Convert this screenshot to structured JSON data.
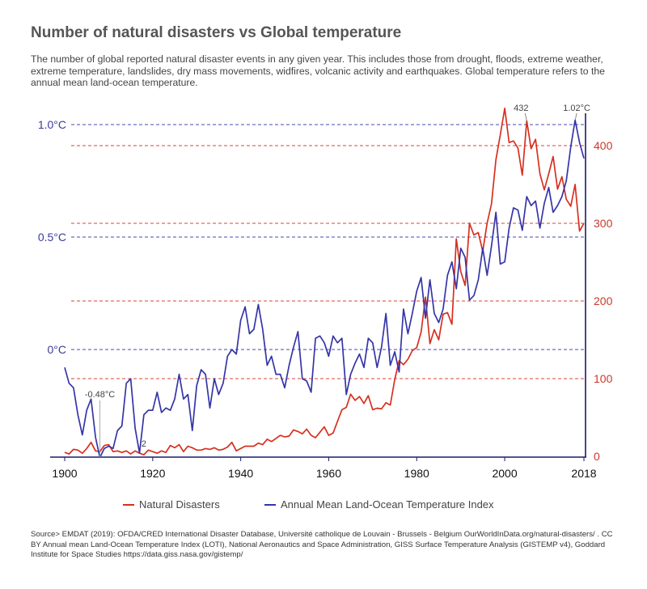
{
  "title": "Number of natural disasters vs Global temperature",
  "subtitle": "The number of global reported natural disaster events in any given year. This includes those from drought, floods, extreme weather, extreme temperature, landslides, dry mass movements, widfires, volcanic activity and earthquakes. Global temperature refers to the annual mean land-ocean temperature.",
  "source": "Source> EMDAT (2019): OFDA/CRED International Disaster Database, Université catholique de Louvain - Brussels - Belgium OurWorldInData.org/natural-disasters/ . CC BY Annual mean Land-Ocean Temperature Index (LOTI), National Aeronautics and Space Administration, GISS Surface Temperature Analysis (GISTEMP v4), Goddard Institute for Space Studies https://data.giss.nasa.gov/gistemp/",
  "colors": {
    "disasters": "#d7301f",
    "temperature": "#3535a8",
    "axis": "#1a1a6e"
  },
  "chart_data": {
    "type": "line",
    "x_ticks": [
      1900,
      1920,
      1940,
      1960,
      1980,
      2000,
      2018
    ],
    "left_axis": {
      "ticks": [
        {
          "v": 0.0,
          "label": "0°C"
        },
        {
          "v": 0.5,
          "label": "0.5°C"
        },
        {
          "v": 1.0,
          "label": "1.0°C"
        }
      ],
      "range": [
        -0.48,
        1.02
      ]
    },
    "right_axis": {
      "ticks": [
        {
          "v": 0,
          "label": "0"
        },
        {
          "v": 100,
          "label": "100"
        },
        {
          "v": 200,
          "label": "200"
        },
        {
          "v": 300,
          "label": "300"
        },
        {
          "v": 400,
          "label": "400"
        }
      ],
      "range": [
        0,
        432
      ]
    },
    "xlim": [
      1900,
      2018
    ],
    "annotations": [
      {
        "label": "-0.48°C",
        "series": "temperature",
        "year": 1908,
        "value": -0.48
      },
      {
        "label": "2",
        "series": "disasters",
        "year": 1918,
        "value": 2
      },
      {
        "label": "432",
        "series": "disasters",
        "year": 2005,
        "value": 432
      },
      {
        "label": "1.02°C",
        "series": "temperature",
        "year": 2016,
        "value": 1.02
      }
    ],
    "series": [
      {
        "name": "Natural Disasters",
        "axis": "right",
        "x": [
          1900,
          1901,
          1902,
          1903,
          1904,
          1905,
          1906,
          1907,
          1908,
          1909,
          1910,
          1911,
          1912,
          1913,
          1914,
          1915,
          1916,
          1917,
          1918,
          1919,
          1920,
          1921,
          1922,
          1923,
          1924,
          1925,
          1926,
          1927,
          1928,
          1929,
          1930,
          1931,
          1932,
          1933,
          1934,
          1935,
          1936,
          1937,
          1938,
          1939,
          1940,
          1941,
          1942,
          1943,
          1944,
          1945,
          1946,
          1947,
          1948,
          1949,
          1950,
          1951,
          1952,
          1953,
          1954,
          1955,
          1956,
          1957,
          1958,
          1959,
          1960,
          1961,
          1962,
          1963,
          1964,
          1965,
          1966,
          1967,
          1968,
          1969,
          1970,
          1971,
          1972,
          1973,
          1974,
          1975,
          1976,
          1977,
          1978,
          1979,
          1980,
          1981,
          1982,
          1983,
          1984,
          1985,
          1986,
          1987,
          1988,
          1989,
          1990,
          1991,
          1992,
          1993,
          1994,
          1995,
          1996,
          1997,
          1998,
          1999,
          2000,
          2001,
          2002,
          2003,
          2004,
          2005,
          2006,
          2007,
          2008,
          2009,
          2010,
          2011,
          2012,
          2013,
          2014,
          2015,
          2016,
          2017,
          2018
        ],
        "values": [
          5,
          3,
          9,
          8,
          4,
          10,
          18,
          7,
          6,
          14,
          15,
          6,
          7,
          5,
          7,
          3,
          7,
          4,
          2,
          8,
          6,
          4,
          7,
          5,
          14,
          11,
          15,
          6,
          13,
          11,
          8,
          8,
          10,
          9,
          11,
          8,
          9,
          12,
          18,
          7,
          10,
          13,
          13,
          13,
          17,
          15,
          22,
          19,
          23,
          27,
          25,
          26,
          34,
          32,
          29,
          35,
          27,
          24,
          31,
          38,
          27,
          30,
          45,
          60,
          63,
          80,
          72,
          77,
          68,
          78,
          60,
          62,
          61,
          69,
          66,
          99,
          123,
          118,
          125,
          136,
          140,
          160,
          205,
          145,
          163,
          150,
          183,
          185,
          170,
          280,
          238,
          220,
          300,
          285,
          288,
          264,
          300,
          325,
          382,
          414,
          448,
          404,
          406,
          397,
          362,
          432,
          396,
          408,
          364,
          343,
          364,
          386,
          344,
          360,
          331,
          322,
          350,
          290,
          300
        ]
      },
      {
        "name": "Annual Mean Land-Ocean Temperature Index",
        "axis": "left",
        "x": [
          1900,
          1901,
          1902,
          1903,
          1904,
          1905,
          1906,
          1907,
          1908,
          1909,
          1910,
          1911,
          1912,
          1913,
          1914,
          1915,
          1916,
          1917,
          1918,
          1919,
          1920,
          1921,
          1922,
          1923,
          1924,
          1925,
          1926,
          1927,
          1928,
          1929,
          1930,
          1931,
          1932,
          1933,
          1934,
          1935,
          1936,
          1937,
          1938,
          1939,
          1940,
          1941,
          1942,
          1943,
          1944,
          1945,
          1946,
          1947,
          1948,
          1949,
          1950,
          1951,
          1952,
          1953,
          1954,
          1955,
          1956,
          1957,
          1958,
          1959,
          1960,
          1961,
          1962,
          1963,
          1964,
          1965,
          1966,
          1967,
          1968,
          1969,
          1970,
          1971,
          1972,
          1973,
          1974,
          1975,
          1976,
          1977,
          1978,
          1979,
          1980,
          1981,
          1982,
          1983,
          1984,
          1985,
          1986,
          1987,
          1988,
          1989,
          1990,
          1991,
          1992,
          1993,
          1994,
          1995,
          1996,
          1997,
          1998,
          1999,
          2000,
          2001,
          2002,
          2003,
          2004,
          2005,
          2006,
          2007,
          2008,
          2009,
          2010,
          2011,
          2012,
          2013,
          2014,
          2015,
          2016,
          2017,
          2018
        ],
        "values": [
          -0.08,
          -0.15,
          -0.17,
          -0.29,
          -0.38,
          -0.27,
          -0.22,
          -0.39,
          -0.48,
          -0.44,
          -0.43,
          -0.44,
          -0.36,
          -0.34,
          -0.15,
          -0.13,
          -0.35,
          -0.46,
          -0.29,
          -0.27,
          -0.27,
          -0.19,
          -0.28,
          -0.26,
          -0.27,
          -0.22,
          -0.11,
          -0.22,
          -0.2,
          -0.36,
          -0.16,
          -0.09,
          -0.11,
          -0.26,
          -0.13,
          -0.2,
          -0.15,
          -0.03,
          0.0,
          -0.02,
          0.13,
          0.19,
          0.07,
          0.09,
          0.2,
          0.09,
          -0.07,
          -0.03,
          -0.11,
          -0.11,
          -0.17,
          -0.07,
          0.01,
          0.08,
          -0.13,
          -0.14,
          -0.19,
          0.05,
          0.06,
          0.03,
          -0.03,
          0.06,
          0.03,
          0.05,
          -0.2,
          -0.11,
          -0.06,
          -0.02,
          -0.08,
          0.05,
          0.03,
          -0.08,
          0.01,
          0.16,
          -0.07,
          -0.01,
          -0.1,
          0.18,
          0.07,
          0.16,
          0.26,
          0.32,
          0.14,
          0.31,
          0.16,
          0.12,
          0.18,
          0.33,
          0.39,
          0.27,
          0.45,
          0.41,
          0.22,
          0.24,
          0.31,
          0.45,
          0.33,
          0.46,
          0.61,
          0.38,
          0.39,
          0.54,
          0.63,
          0.62,
          0.53,
          0.68,
          0.64,
          0.66,
          0.54,
          0.65,
          0.72,
          0.61,
          0.64,
          0.68,
          0.75,
          0.9,
          1.02,
          0.92,
          0.85
        ]
      }
    ]
  }
}
